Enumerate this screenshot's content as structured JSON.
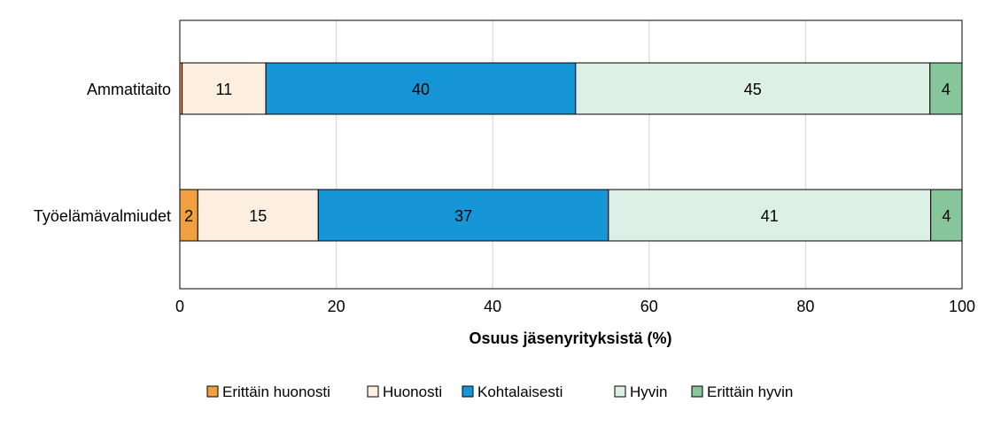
{
  "chart_data": {
    "type": "bar",
    "orientation": "horizontal",
    "stacked": true,
    "title": "",
    "xlabel": "Osuus jäsenyrityksistä (%)",
    "ylabel": "",
    "xlim": [
      0,
      100
    ],
    "x_ticks": [
      "0",
      "20",
      "40",
      "60",
      "80",
      "100"
    ],
    "categories": [
      "Ammatitaito",
      "Työelämävalmiudet"
    ],
    "series": [
      {
        "name": "Erittäin huonosti",
        "color": "#f0a040",
        "values": [
          0.3,
          2.3
        ],
        "labels": [
          "",
          "2"
        ]
      },
      {
        "name": "Huonosti",
        "color": "#fdefe0",
        "values": [
          10.7,
          15.4
        ],
        "labels": [
          "11",
          "15"
        ]
      },
      {
        "name": "Kohtalaisesti",
        "color": "#1696d6",
        "values": [
          39.6,
          37.1
        ],
        "labels": [
          "40",
          "37"
        ]
      },
      {
        "name": "Hyvin",
        "color": "#ddf0e6",
        "values": [
          45.3,
          41.2
        ],
        "labels": [
          "45",
          "41"
        ]
      },
      {
        "name": "Erittäin hyvin",
        "color": "#86c69a",
        "values": [
          4.1,
          4.0
        ],
        "labels": [
          "4",
          "4"
        ]
      }
    ],
    "grid": true,
    "legend_position": "bottom"
  }
}
